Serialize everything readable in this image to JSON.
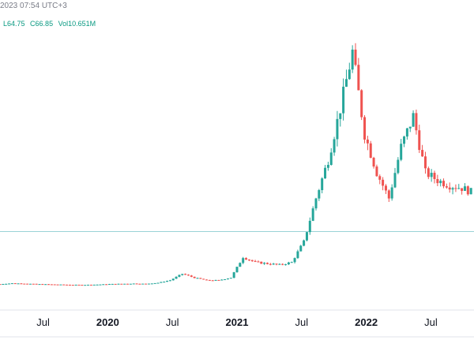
{
  "header": {
    "datetime": "2023 07:54 UTC+3",
    "l_value": "L64.75",
    "c_value": "C66.85",
    "vol_value": "Vol10.651M"
  },
  "colors": {
    "up": "#26a69a",
    "down": "#ef5350",
    "ref_line": "#9ad3d6",
    "axis_text": "#131722",
    "border": "#e0e3eb"
  },
  "chart_data": {
    "type": "line",
    "title": "",
    "xlabel": "",
    "ylabel": "",
    "x_tick_labels": [
      "Jul",
      "2020",
      "Jul",
      "2021",
      "Jul",
      "2022",
      "Jul"
    ],
    "x_tick_dates": [
      "2019-07",
      "2020-01",
      "2020-07",
      "2021-01",
      "2021-07",
      "2022-01",
      "2022-07"
    ],
    "xlim": [
      "2019-03",
      "2022-11"
    ],
    "ylim": [
      0,
      100
    ],
    "grid": false,
    "reference_line_y": 22,
    "series": [
      {
        "values": [
          1.5,
          1.8,
          1.7,
          1.5,
          1.4,
          1.3,
          1.2,
          1.2,
          1.3,
          1.5,
          1.6,
          1.7,
          1.6,
          2.0,
          3.0,
          5.5,
          4.0,
          3.0,
          3.0,
          4.0,
          12.0,
          10.0,
          9.5,
          9.0,
          10.0,
          18.0,
          35.0,
          50.0,
          70.0,
          92.0,
          60.0,
          45.0,
          35.0,
          55.0,
          67.0,
          45.0,
          42.0,
          40.0,
          39.0,
          37.0
        ]
      }
    ]
  }
}
